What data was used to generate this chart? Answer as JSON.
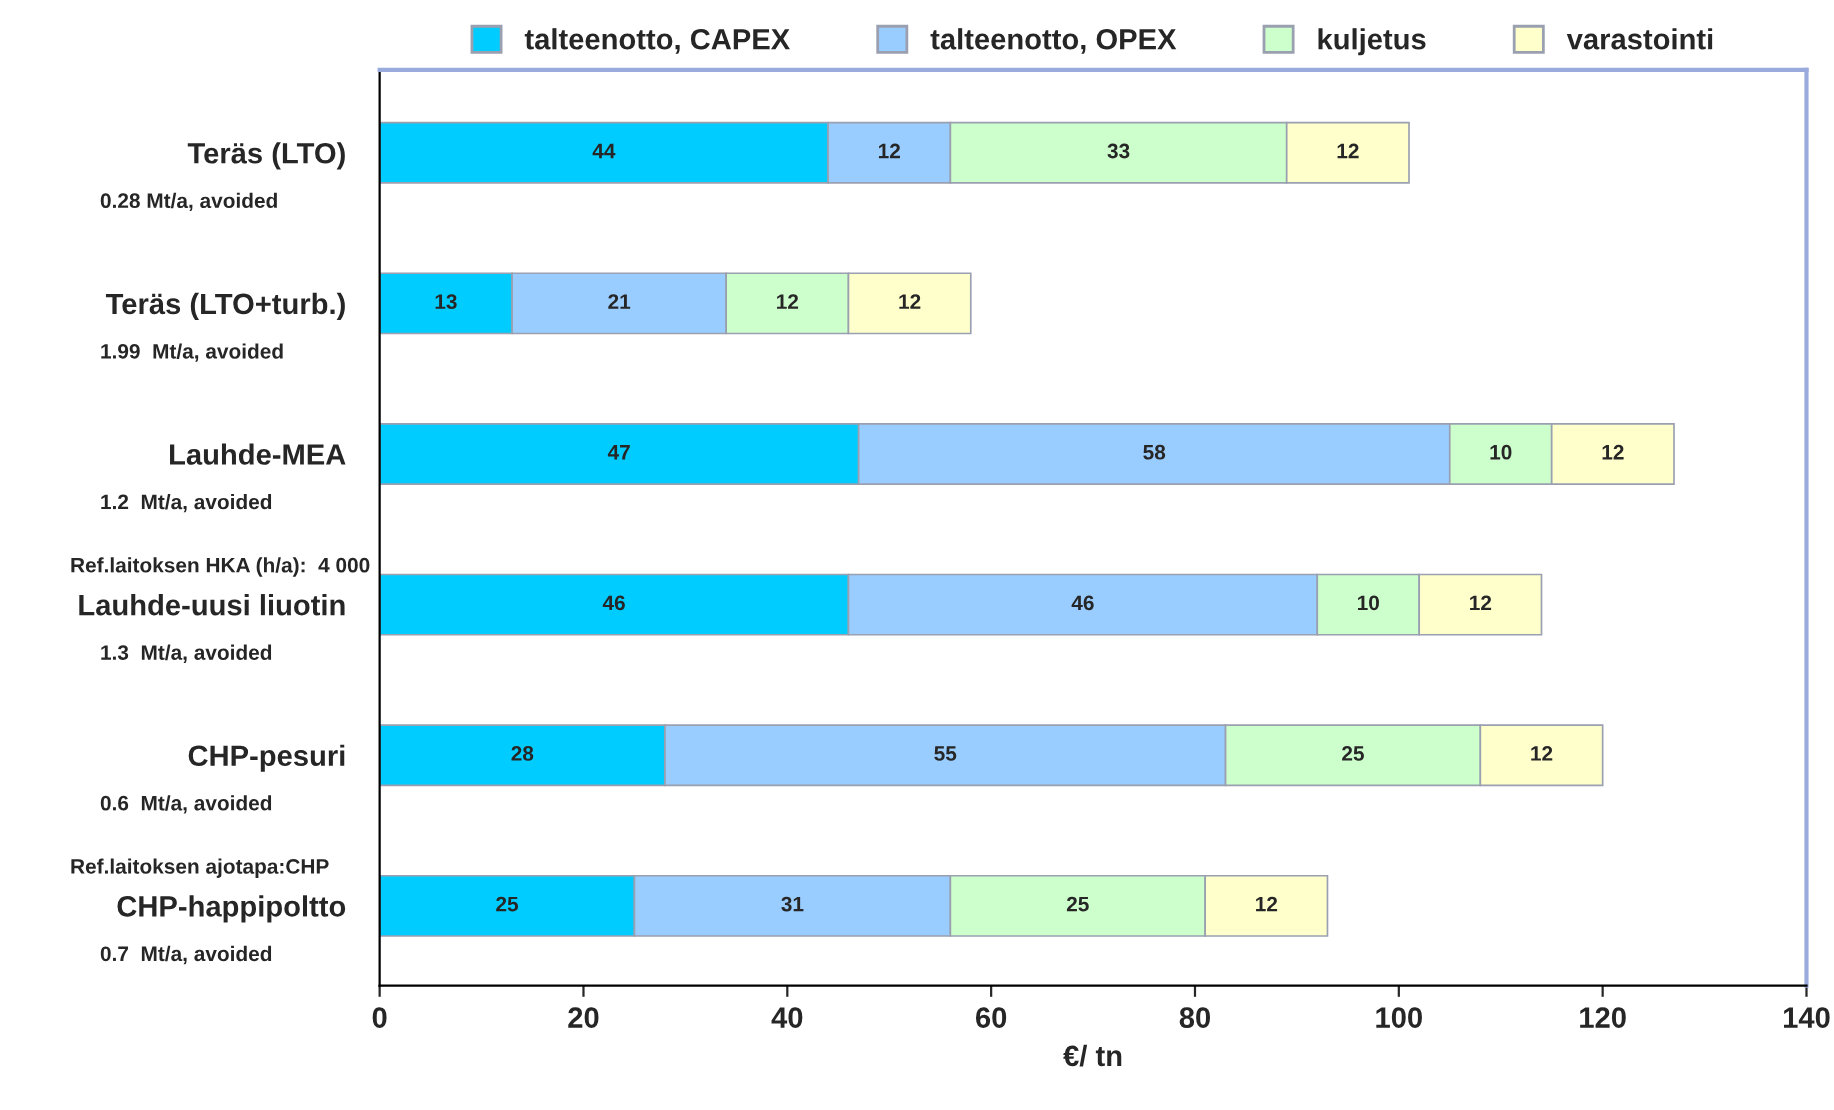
{
  "chart_data": {
    "type": "bar",
    "orientation": "horizontal",
    "stacked": true,
    "categories": [
      "Teräs (LTO)",
      "Teräs (LTO+turb.)",
      "Lauhde-MEA",
      "Lauhde-uusi liuotin",
      "CHP-pesuri",
      "CHP-happipoltto"
    ],
    "series": [
      {
        "name": "talteenotto, CAPEX",
        "color": "#00ccff",
        "values": [
          44,
          13,
          47,
          46,
          28,
          25
        ]
      },
      {
        "name": "talteenotto, OPEX",
        "color": "#99ccff",
        "values": [
          12,
          21,
          58,
          46,
          55,
          31
        ]
      },
      {
        "name": "kuljetus",
        "color": "#ccffcc",
        "values": [
          33,
          12,
          10,
          10,
          25,
          25
        ]
      },
      {
        "name": "varastointi",
        "color": "#ffffcc",
        "values": [
          12,
          12,
          12,
          12,
          12,
          12
        ]
      }
    ],
    "data_labels": true,
    "xlabel": "€/ tn",
    "xlim": [
      0,
      140
    ],
    "xticks": [
      0,
      20,
      40,
      60,
      80,
      100,
      120,
      140
    ],
    "legend": "top",
    "grid": false,
    "annotations": [
      "0.28 Mt/a, avoided",
      "1.99  Mt/a, avoided",
      "1.2  Mt/a, avoided",
      "Ref.laitoksen HKA (h/a):  4 000",
      "1.3  Mt/a, avoided",
      "0.6  Mt/a, avoided",
      "Ref.laitoksen ajotapa:CHP",
      "0.7  Mt/a, avoided"
    ]
  }
}
